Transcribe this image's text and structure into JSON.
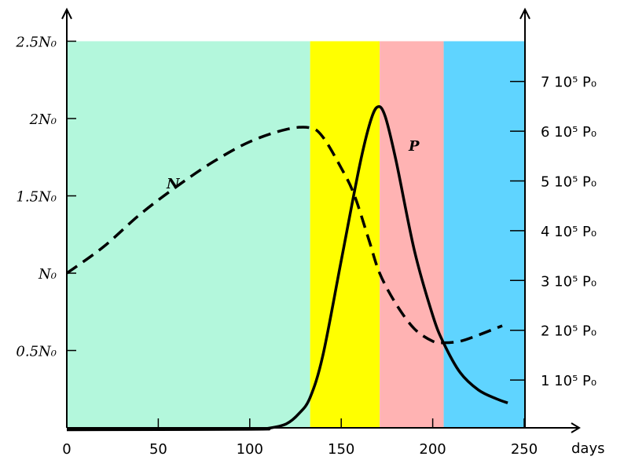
{
  "chart_data": {
    "type": "line",
    "xlabel": "days",
    "x_ticks": [
      0,
      50,
      100,
      150,
      200,
      250
    ],
    "xlim": [
      0,
      250
    ],
    "left_axis": {
      "ylim": [
        0,
        2.5
      ],
      "ticks": [
        {
          "value": 0.5,
          "label": "0.5N₀"
        },
        {
          "value": 1,
          "label": "N₀"
        },
        {
          "value": 1.5,
          "label": "1.5N₀"
        },
        {
          "value": 2,
          "label": "2N₀"
        },
        {
          "value": 2.5,
          "label": "2.5N₀"
        }
      ]
    },
    "right_axis": {
      "ylim": [
        0,
        7.5
      ],
      "ticks": [
        {
          "value": 1,
          "label": "1 10⁵ P₀"
        },
        {
          "value": 2,
          "label": "2 10⁵ P₀"
        },
        {
          "value": 3,
          "label": "3 10⁵ P₀"
        },
        {
          "value": 4,
          "label": "4 10⁵ P₀"
        },
        {
          "value": 5,
          "label": "5 10⁵ P₀"
        },
        {
          "value": 6,
          "label": "6 10⁵ P₀"
        },
        {
          "value": 7,
          "label": "7 10⁵ P₀"
        }
      ]
    },
    "bands": [
      {
        "from": 0,
        "to": 133,
        "color": "#b3f7dc"
      },
      {
        "from": 133,
        "to": 171,
        "color": "#ffff00"
      },
      {
        "from": 171,
        "to": 206,
        "color": "#ffb3b3"
      },
      {
        "from": 206,
        "to": 250,
        "color": "#5fd4ff"
      }
    ],
    "series": [
      {
        "name": "N",
        "axis": "left",
        "style": "dashed",
        "x": [
          0,
          20,
          40,
          60,
          80,
          100,
          120,
          133,
          140,
          150,
          157,
          165,
          171,
          180,
          190,
          200,
          206,
          215,
          225,
          238
        ],
        "y": [
          1.0,
          1.17,
          1.38,
          1.56,
          1.72,
          1.85,
          1.93,
          1.94,
          1.88,
          1.68,
          1.51,
          1.22,
          1.0,
          0.8,
          0.64,
          0.56,
          0.55,
          0.56,
          0.6,
          0.66
        ]
      },
      {
        "name": "P",
        "axis": "right",
        "style": "solid",
        "x": [
          0,
          100,
          110,
          120,
          127,
          133,
          140,
          150,
          160,
          166,
          170,
          174,
          180,
          190,
          200,
          206,
          215,
          225,
          235,
          241
        ],
        "y": [
          0,
          0.01,
          0.03,
          0.12,
          0.33,
          0.65,
          1.5,
          3.4,
          5.3,
          6.2,
          6.49,
          6.3,
          5.4,
          3.6,
          2.3,
          1.74,
          1.15,
          0.8,
          0.62,
          0.54
        ]
      }
    ]
  }
}
